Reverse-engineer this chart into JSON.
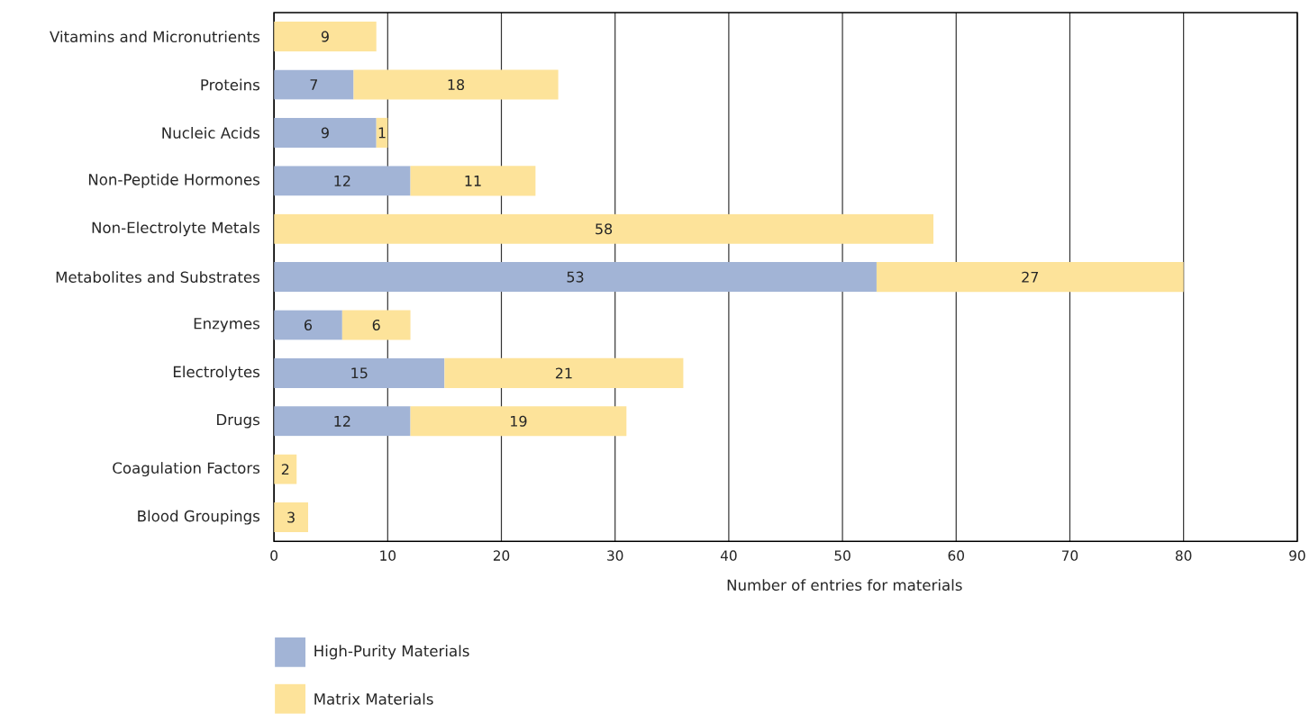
{
  "chart_data": {
    "type": "bar",
    "orientation": "horizontal",
    "stacked": true,
    "data_labels": true,
    "categories": [
      "Vitamins and Micronutrients",
      "Proteins",
      "Nucleic Acids",
      "Non-Peptide Hormones",
      "Non-Electrolyte Metals",
      "Metabolites and Substrates",
      "Enzymes",
      "Electrolytes",
      "Drugs",
      "Coagulation Factors",
      "Blood Groupings"
    ],
    "series": [
      {
        "name": "High-Purity Materials",
        "color": "#a2b4d6",
        "values": [
          null,
          7,
          9,
          12,
          null,
          53,
          6,
          15,
          12,
          null,
          null
        ]
      },
      {
        "name": "Matrix Materials",
        "color": "#fde39a",
        "values": [
          9,
          18,
          1,
          11,
          58,
          27,
          6,
          21,
          19,
          2,
          3
        ]
      }
    ],
    "xlabel": "Number of entries for materials",
    "xlim": [
      0,
      90
    ],
    "xticks": [
      0,
      10,
      20,
      30,
      40,
      50,
      60,
      70,
      80,
      90
    ],
    "grid": "x",
    "legend": "bottom"
  }
}
